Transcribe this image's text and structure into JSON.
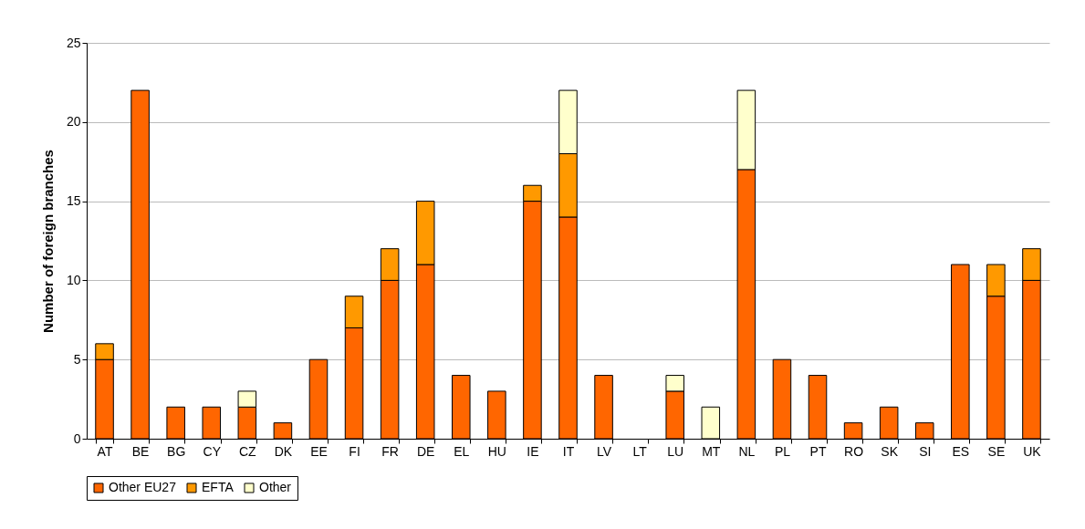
{
  "chart_data": {
    "type": "bar",
    "stacked": true,
    "ylabel": "Number of foreign branches",
    "categories": [
      "AT",
      "BE",
      "BG",
      "CY",
      "CZ",
      "DK",
      "EE",
      "FI",
      "FR",
      "DE",
      "EL",
      "HU",
      "IE",
      "IT",
      "LV",
      "LT",
      "LU",
      "MT",
      "NL",
      "PL",
      "PT",
      "RO",
      "SK",
      "SI",
      "ES",
      "SE",
      "UK"
    ],
    "series": [
      {
        "name": "Other EU27",
        "color": "#ff6600",
        "values": [
          5,
          22,
          2,
          2,
          2,
          1,
          5,
          7,
          10,
          11,
          4,
          3,
          15,
          14,
          4,
          null,
          3,
          null,
          17,
          5,
          4,
          1,
          2,
          1,
          11,
          9,
          10
        ]
      },
      {
        "name": "EFTA",
        "color": "#ff9900",
        "values": [
          1,
          null,
          null,
          null,
          null,
          null,
          null,
          2,
          2,
          4,
          null,
          null,
          1,
          4,
          null,
          null,
          null,
          null,
          null,
          null,
          null,
          null,
          null,
          null,
          null,
          2,
          2
        ]
      },
      {
        "name": "Other",
        "color": "#ffffcc",
        "values": [
          null,
          null,
          null,
          null,
          1,
          null,
          null,
          null,
          null,
          null,
          null,
          null,
          null,
          4,
          null,
          null,
          1,
          2,
          5,
          null,
          null,
          null,
          null,
          null,
          null,
          null,
          null
        ]
      }
    ],
    "ylim": [
      0,
      25
    ],
    "yticks": [
      0,
      5,
      10,
      15,
      20,
      25
    ],
    "grid": "y",
    "legend": "bottom"
  }
}
